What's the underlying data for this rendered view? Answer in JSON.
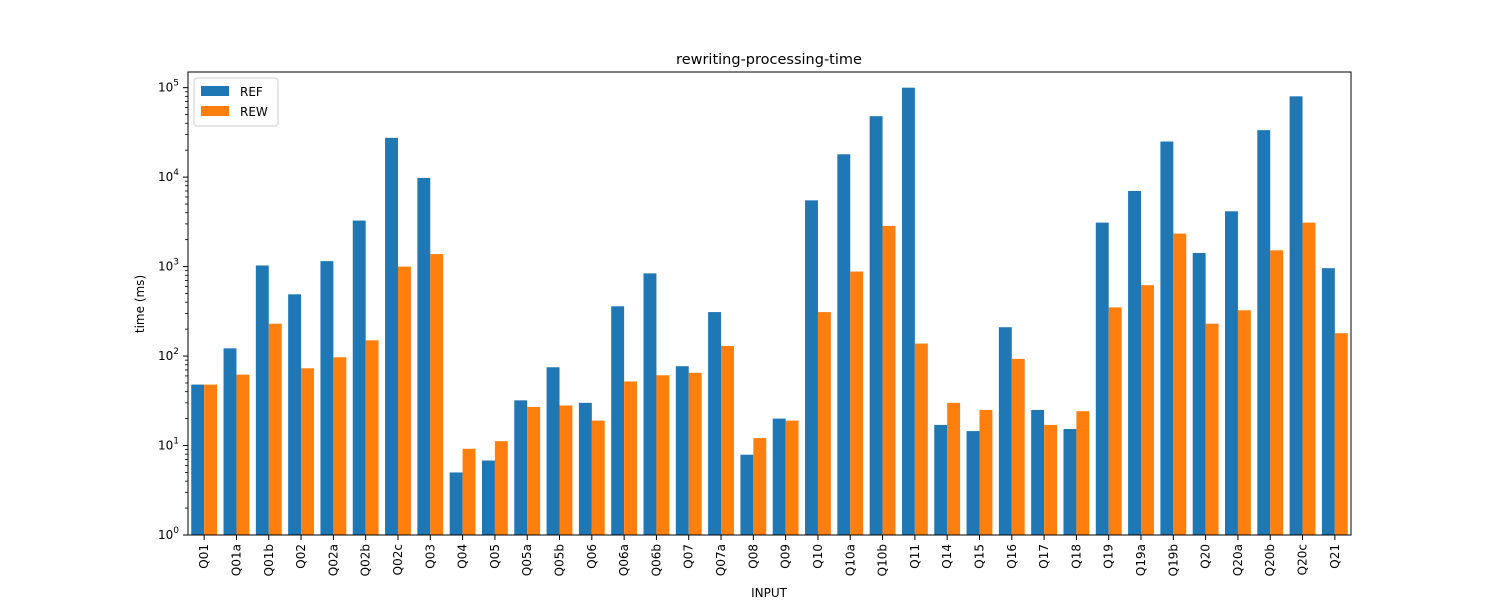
{
  "chart_data": {
    "type": "bar",
    "title": "rewriting-processing-time",
    "xlabel": "INPUT",
    "ylabel": "time (ms)",
    "yscale": "log",
    "ylim": [
      1,
      100000
    ],
    "y_ticks": [
      1,
      10,
      100,
      1000,
      10000,
      100000
    ],
    "y_tick_labels": [
      {
        "base": "10",
        "exp": "0"
      },
      {
        "base": "10",
        "exp": "1"
      },
      {
        "base": "10",
        "exp": "2"
      },
      {
        "base": "10",
        "exp": "3"
      },
      {
        "base": "10",
        "exp": "4"
      },
      {
        "base": "10",
        "exp": "5"
      }
    ],
    "grid": false,
    "legend": "top-left",
    "categories": [
      "Q01",
      "Q01a",
      "Q01b",
      "Q02",
      "Q02a",
      "Q02b",
      "Q02c",
      "Q03",
      "Q04",
      "Q05",
      "Q05a",
      "Q05b",
      "Q06",
      "Q06a",
      "Q06b",
      "Q07",
      "Q07a",
      "Q08",
      "Q09",
      "Q10",
      "Q10a",
      "Q10b",
      "Q11",
      "Q14",
      "Q15",
      "Q16",
      "Q17",
      "Q18",
      "Q19",
      "Q19a",
      "Q19b",
      "Q20",
      "Q20a",
      "Q20b",
      "Q20c",
      "Q21"
    ],
    "series": [
      {
        "name": "REF",
        "color": "#1f77b4",
        "values": [
          48,
          122,
          1030,
          490,
          1150,
          3270,
          27500,
          9800,
          5,
          6.8,
          32,
          75,
          30,
          360,
          840,
          77,
          310,
          7.9,
          20,
          5500,
          18000,
          48000,
          100000,
          17,
          14.5,
          210,
          25,
          15.3,
          3100,
          7000,
          25000,
          1420,
          4150,
          33500,
          80000,
          960
        ]
      },
      {
        "name": "REW",
        "color": "#ff7f0e",
        "values": [
          48,
          62,
          230,
          73,
          97,
          150,
          1000,
          1380,
          9.2,
          11.2,
          27,
          28,
          19,
          52,
          61,
          65,
          130,
          12.1,
          19,
          310,
          880,
          2850,
          138,
          30,
          25,
          93,
          17,
          24.2,
          350,
          620,
          2340,
          230,
          325,
          1520,
          3100,
          180
        ]
      }
    ]
  }
}
